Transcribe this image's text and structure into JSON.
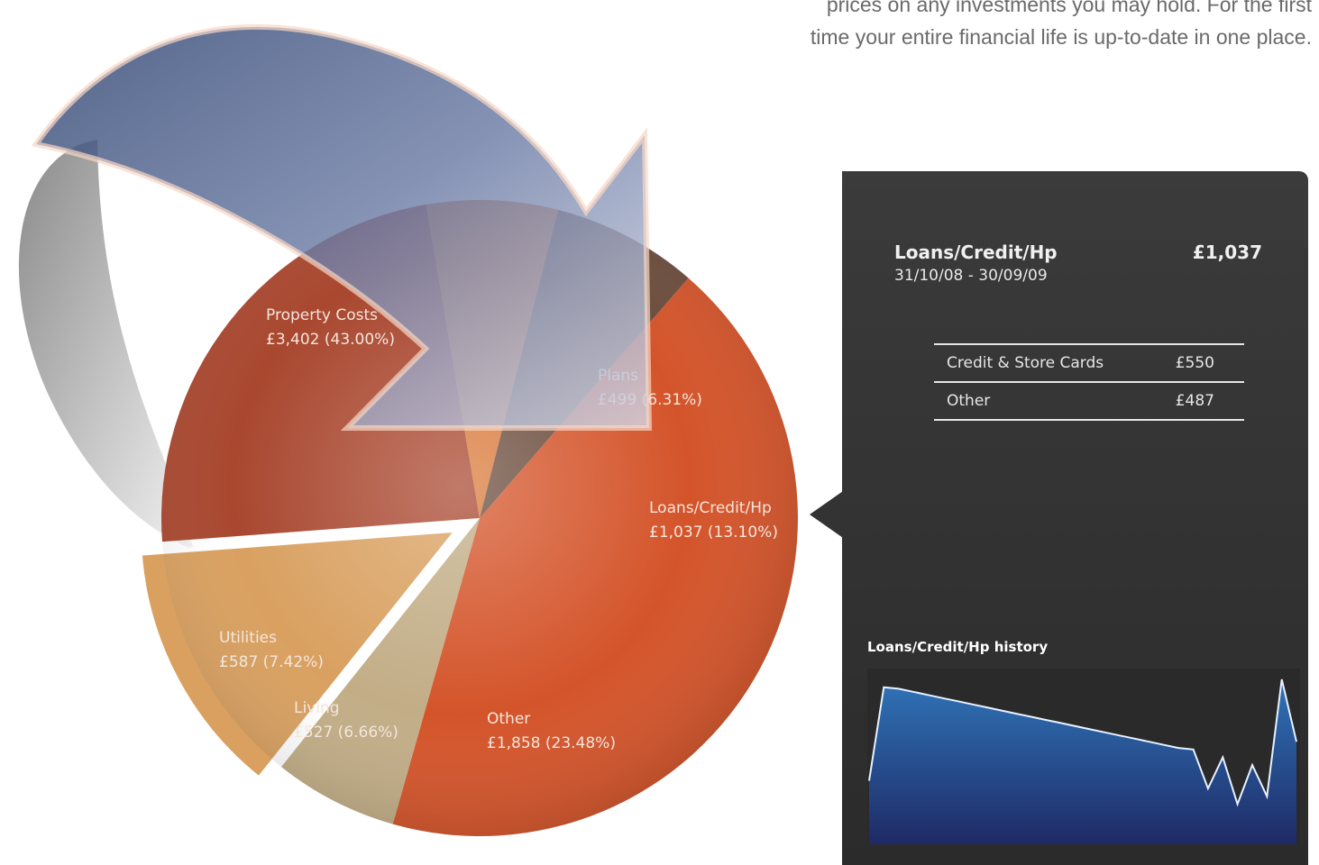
{
  "intro_lines": [
    "prices on any investments you may hold. For the first",
    "time your entire financial life is up-to-date in one place."
  ],
  "colors": {
    "property": "#d4542a",
    "plans": "#c2ad86",
    "loans": "#d9a060",
    "other": "#a9472f",
    "living": "#d97a3a",
    "utilities": "#6b4c3c",
    "panel": "#333333",
    "history_fill": "#2a63a8"
  },
  "chart_data": {
    "type": "pie",
    "slices": [
      {
        "label": "Property Costs",
        "value": 3402,
        "display": "£3,402 (43.00%)",
        "percent": 43.0
      },
      {
        "label": "Plans",
        "value": 499,
        "display": "£499 (6.31%)",
        "percent": 6.31
      },
      {
        "label": "Loans/Credit/Hp",
        "value": 1037,
        "display": "£1,037 (13.10%)",
        "percent": 13.1,
        "exploded": true
      },
      {
        "label": "Other",
        "value": 1858,
        "display": "£1,858 (23.48%)",
        "percent": 23.48
      },
      {
        "label": "Living",
        "value": 527,
        "display": "£527 (6.66%)",
        "percent": 6.66
      },
      {
        "label": "Utilities",
        "value": 587,
        "display": "£587 (7.42%)",
        "percent": 7.42
      }
    ]
  },
  "panel": {
    "title": "Loans/Credit/Hp",
    "amount": "£1,037",
    "date_range": "31/10/08 - 30/09/09",
    "breakdown": [
      {
        "label": "Credit & Store Cards",
        "amount": "£550"
      },
      {
        "label": "Other",
        "amount": "£487"
      }
    ],
    "history_title": "Loans/Credit/Hp history",
    "history_values": [
      0.35,
      0.95,
      0.94,
      0.92,
      0.9,
      0.88,
      0.86,
      0.84,
      0.82,
      0.8,
      0.78,
      0.76,
      0.74,
      0.72,
      0.7,
      0.68,
      0.66,
      0.64,
      0.62,
      0.6,
      0.58,
      0.56,
      0.55,
      0.3,
      0.5,
      0.2,
      0.45,
      0.25,
      1.0,
      0.6
    ]
  }
}
